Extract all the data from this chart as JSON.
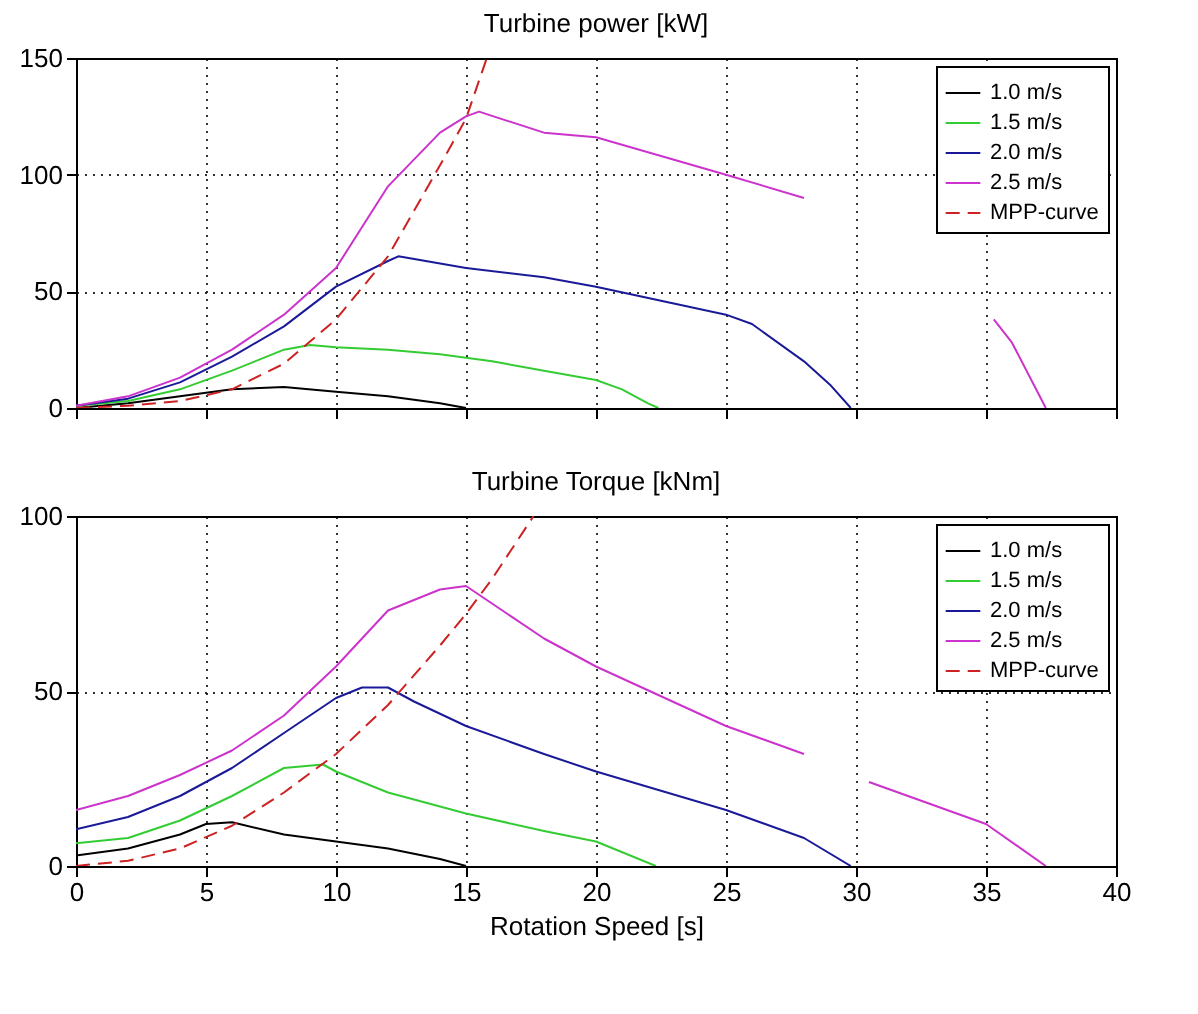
{
  "chart_data": [
    {
      "type": "line",
      "title": "Turbine power [kW]",
      "xlim": [
        0,
        40
      ],
      "xticks": [
        0,
        5,
        10,
        15,
        20,
        25,
        30,
        35,
        40
      ],
      "ylim": [
        0,
        150
      ],
      "yticks": [
        0,
        50,
        100,
        150
      ],
      "grid": true,
      "legend": "top right",
      "tick_labels": "y",
      "series": [
        {
          "name": "1.0 m/s",
          "color": "#000000",
          "line_style": "solid",
          "x": [
            0,
            2,
            4,
            6,
            8,
            10,
            12,
            14,
            15
          ],
          "values": [
            0,
            2,
            5,
            8,
            9,
            7,
            5,
            2,
            0
          ]
        },
        {
          "name": "1.5 m/s",
          "color": "#33cc33",
          "line_style": "solid",
          "x": [
            0,
            2,
            4,
            6,
            8,
            9,
            10,
            12,
            14,
            16,
            18,
            20,
            21,
            22,
            22.4
          ],
          "values": [
            1,
            3,
            8,
            16,
            25,
            27,
            26,
            25,
            23,
            20,
            16,
            12,
            8,
            2,
            0
          ]
        },
        {
          "name": "2.0 m/s",
          "color": "#1a1a99",
          "line_style": "solid",
          "x": [
            0,
            2,
            4,
            6,
            8,
            10,
            12,
            12.4,
            15,
            18,
            20,
            25,
            26,
            28,
            29,
            29.8
          ],
          "values": [
            1,
            4,
            11,
            22,
            35,
            52,
            63,
            65,
            60,
            56,
            52,
            40,
            36,
            20,
            10,
            0
          ]
        },
        {
          "name": "2.5 m/s",
          "color": "#cc33cc",
          "line_style": "solid",
          "x": [
            0,
            2,
            4,
            6,
            8,
            10,
            12,
            14,
            15,
            15.5,
            18,
            20,
            25,
            28,
            31,
            35.3,
            36,
            37.3
          ],
          "values": [
            1,
            5,
            13,
            25,
            40,
            60,
            95,
            118,
            125,
            127,
            118,
            116,
            100,
            90,
            null,
            38,
            28,
            0
          ]
        },
        {
          "name": "MPP-curve",
          "color": "#cc2222",
          "line_style": "dashed",
          "x": [
            0,
            2,
            4,
            6,
            8,
            10,
            12,
            14,
            15,
            15.8
          ],
          "values": [
            0,
            1,
            3,
            8,
            19,
            38,
            65,
            104,
            124,
            150
          ]
        }
      ]
    },
    {
      "type": "line",
      "title": "Turbine Torque [kNm]",
      "xlabel": "Rotation Speed [s]",
      "xlim": [
        0,
        40
      ],
      "xticks": [
        0,
        5,
        10,
        15,
        20,
        25,
        30,
        35,
        40
      ],
      "ylim": [
        0,
        100
      ],
      "yticks": [
        0,
        50,
        100
      ],
      "grid": true,
      "legend": "top right",
      "series": [
        {
          "name": "1.0 m/s",
          "color": "#000000",
          "line_style": "solid",
          "x": [
            0,
            2,
            4,
            5,
            6,
            8,
            10,
            12,
            14,
            15
          ],
          "values": [
            3,
            5,
            9,
            12,
            12.5,
            9,
            7,
            5,
            2,
            0
          ]
        },
        {
          "name": "1.5 m/s",
          "color": "#33cc33",
          "line_style": "solid",
          "x": [
            0,
            2,
            4,
            6,
            8,
            9.5,
            10,
            12,
            15,
            18,
            20,
            22.3
          ],
          "values": [
            6.5,
            8,
            13,
            20,
            28,
            29,
            27,
            21,
            15,
            10,
            7,
            0
          ]
        },
        {
          "name": "2.0 m/s",
          "color": "#1a1a99",
          "line_style": "solid",
          "x": [
            0,
            2,
            4,
            6,
            8,
            10,
            11,
            12,
            13,
            15,
            18,
            20,
            25,
            28,
            29.8
          ],
          "values": [
            10.5,
            14,
            20,
            28,
            38,
            48,
            51,
            51,
            47,
            40,
            32,
            27,
            16,
            8,
            0
          ]
        },
        {
          "name": "2.5 m/s",
          "color": "#cc33cc",
          "line_style": "solid",
          "x": [
            0,
            2,
            4,
            6,
            8,
            10,
            12,
            14,
            15,
            16,
            18,
            20,
            25,
            28,
            29.5,
            30.5,
            32,
            35,
            37.3
          ],
          "values": [
            16,
            20,
            26,
            33,
            43,
            57,
            73,
            79,
            80,
            75,
            65,
            57,
            40,
            32,
            null,
            24,
            20,
            12,
            0
          ]
        },
        {
          "name": "MPP-curve",
          "color": "#cc2222",
          "line_style": "dashed",
          "x": [
            0,
            2,
            4,
            6,
            8,
            10,
            12,
            14,
            15,
            16,
            17.6
          ],
          "values": [
            0,
            1.5,
            5,
            11.5,
            21,
            32,
            46,
            63,
            72,
            82,
            100
          ]
        }
      ]
    }
  ]
}
